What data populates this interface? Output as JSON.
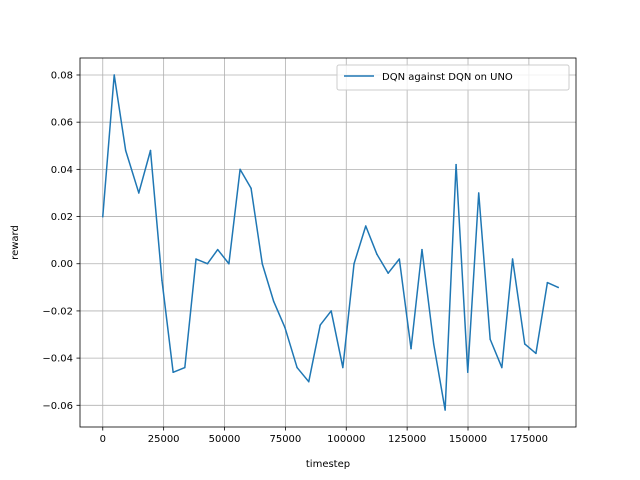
{
  "chart_data": {
    "type": "line",
    "title": "",
    "xlabel": "timestep",
    "ylabel": "reward",
    "xlim": [
      -9350,
      194350
    ],
    "ylim": [
      -0.0692,
      0.0872
    ],
    "grid": true,
    "legend_position": "top-right",
    "xticks": [
      0,
      25000,
      50000,
      75000,
      100000,
      125000,
      150000,
      175000
    ],
    "xtick_labels": [
      "0",
      "25000",
      "50000",
      "75000",
      "100000",
      "125000",
      "150000",
      "175000"
    ],
    "yticks": [
      -0.06,
      -0.04,
      -0.02,
      0.0,
      0.02,
      0.04,
      0.06,
      0.08
    ],
    "ytick_labels": [
      "−0.06",
      "−0.04",
      "−0.02",
      "0.00",
      "0.02",
      "0.04",
      "0.06",
      "0.08"
    ],
    "series": [
      {
        "name": "DQN against DQN on UNO",
        "color": "#1f77b4",
        "x": [
          0,
          4700,
          9400,
          14800,
          19600,
          24300,
          28900,
          33700,
          38300,
          43000,
          47200,
          51800,
          56400,
          60900,
          65500,
          70200,
          74800,
          79800,
          84600,
          89300,
          93800,
          98600,
          103200,
          108000,
          112600,
          117200,
          121800,
          126600,
          131100,
          135900,
          140600,
          145100,
          149900,
          154400,
          159100,
          163900,
          168300,
          173300,
          177900,
          182600,
          187000
        ],
        "y": [
          0.02,
          0.08,
          0.048,
          0.03,
          0.048,
          -0.007,
          -0.046,
          -0.044,
          0.002,
          0.0,
          0.006,
          0.0,
          0.04,
          0.032,
          0.0,
          -0.016,
          -0.027,
          -0.044,
          -0.05,
          -0.026,
          -0.02,
          -0.044,
          0.0,
          0.016,
          0.004,
          -0.004,
          0.002,
          -0.036,
          0.006,
          -0.034,
          -0.062,
          0.042,
          -0.046,
          0.03,
          -0.032,
          -0.044,
          0.002,
          -0.034,
          -0.038,
          -0.008,
          -0.01
        ]
      }
    ]
  }
}
